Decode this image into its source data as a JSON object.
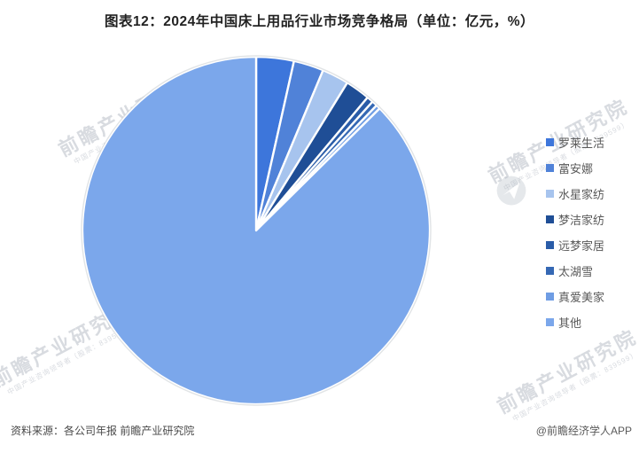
{
  "title": "图表12：2024年中国床上用品行业市场竞争格局（单位：亿元，%）",
  "chart_data": {
    "type": "pie",
    "title": "2024年中国床上用品行业市场竞争格局",
    "unit_note": "单位：亿元，%",
    "legend_position": "right",
    "start_angle": "12-oclock-clockwise",
    "data_labels_shown": false,
    "series": [
      {
        "name": "罗莱生活",
        "share_pct": 3.5,
        "color": "#3D76DB"
      },
      {
        "name": "富安娜",
        "share_pct": 2.8,
        "color": "#5082D8"
      },
      {
        "name": "水星家纺",
        "share_pct": 2.5,
        "color": "#A7C4EE"
      },
      {
        "name": "梦洁家纺",
        "share_pct": 2.3,
        "color": "#1F4E96"
      },
      {
        "name": "远梦家居",
        "share_pct": 0.6,
        "color": "#2A5CA8"
      },
      {
        "name": "太湖雪",
        "share_pct": 0.5,
        "color": "#3568B4"
      },
      {
        "name": "真爱美家",
        "share_pct": 0.4,
        "color": "#6F9DE4"
      },
      {
        "name": "其他",
        "share_pct": 87.4,
        "color": "#7BA7EB"
      }
    ]
  },
  "footer": {
    "source": "资料来源：各公司年报  前瞻产业研究院",
    "credit": "@前瞻经济学人APP"
  },
  "watermark": {
    "text": "前瞻产业研究院",
    "subtext": "中国产业咨询领导者（股票：839599）"
  }
}
